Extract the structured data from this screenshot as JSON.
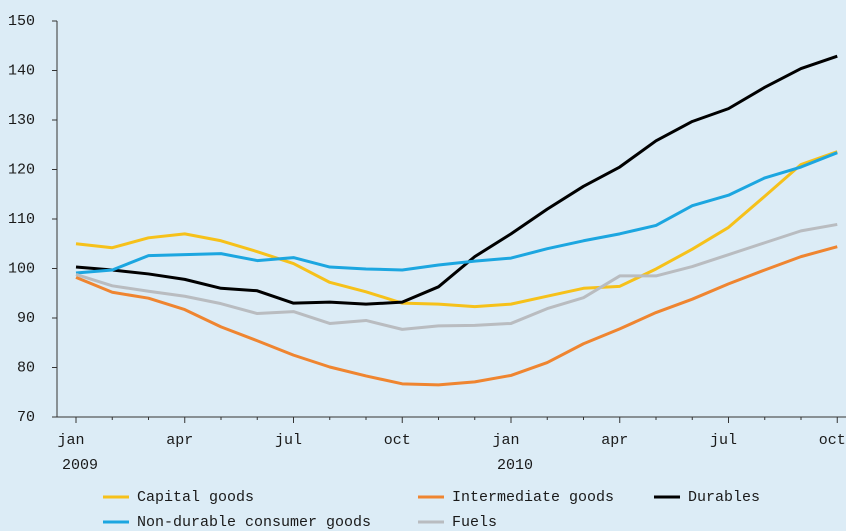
{
  "chart_data": {
    "type": "line",
    "categories": [
      "jan",
      null,
      null,
      "apr",
      null,
      null,
      "jul",
      null,
      null,
      "oct",
      null,
      null,
      "jan",
      null,
      null,
      "apr",
      null,
      null,
      "jul",
      null,
      null,
      "oct"
    ],
    "years": [
      "2009",
      null,
      null,
      null,
      null,
      null,
      null,
      null,
      null,
      null,
      null,
      null,
      "2010",
      null,
      null,
      null,
      null,
      null,
      null,
      null,
      null,
      null
    ],
    "series": [
      {
        "name": "Capital goods",
        "color": "#f6c11a",
        "values": [
          105,
          104.2,
          106.2,
          107,
          105.6,
          103.4,
          101,
          97.2,
          95.3,
          93,
          92.8,
          92.3,
          92.8,
          94.4,
          96,
          96.4,
          99.9,
          103.9,
          108.3,
          114.6,
          121,
          123.6
        ]
      },
      {
        "name": "Intermediate goods",
        "color": "#ef8530",
        "values": [
          98.2,
          95.2,
          94,
          91.7,
          88.2,
          85.4,
          82.5,
          80.1,
          78.3,
          76.7,
          76.5,
          77.1,
          78.4,
          81,
          84.8,
          87.8,
          91.1,
          93.8,
          96.9,
          99.7,
          102.4,
          104.4
        ]
      },
      {
        "name": "Durables",
        "color": "#000000",
        "values": [
          100.3,
          99.7,
          98.9,
          97.8,
          96,
          95.5,
          93,
          93.2,
          92.8,
          93.2,
          96.3,
          102.4,
          107,
          112,
          116.6,
          120.5,
          125.8,
          129.7,
          132.3,
          136.6,
          140.4,
          142.9
        ]
      },
      {
        "name": "Non-durable consumer goods",
        "color": "#1ca6e0",
        "values": [
          99.1,
          99.7,
          102.6,
          102.8,
          103,
          101.6,
          102.2,
          100.3,
          99.9,
          99.7,
          100.7,
          101.5,
          102.1,
          104,
          105.6,
          107,
          108.7,
          112.7,
          114.8,
          118.3,
          120.5,
          123.4
        ]
      },
      {
        "name": "Fuels",
        "color": "#b9bcc0",
        "values": [
          98.8,
          96.5,
          95.4,
          94.4,
          92.9,
          90.9,
          91.3,
          88.9,
          89.5,
          87.7,
          88.4,
          88.5,
          88.9,
          91.9,
          94.1,
          98.5,
          98.5,
          100.4,
          102.8,
          105.2,
          107.6,
          108.9
        ]
      }
    ],
    "ylim": [
      70,
      150
    ],
    "yticks": [
      70,
      80,
      90,
      100,
      110,
      120,
      130,
      140,
      150
    ],
    "grid": false
  }
}
